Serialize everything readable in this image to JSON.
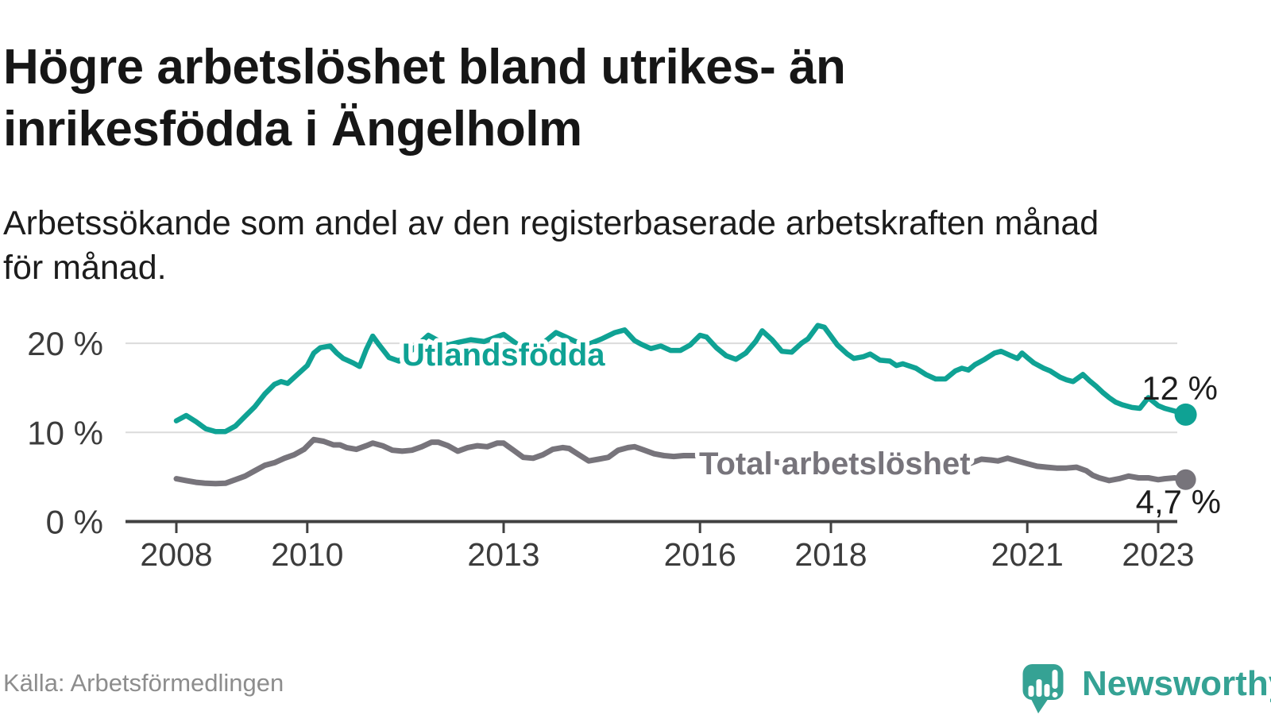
{
  "header": {
    "title_line1": "Högre arbetslöshet bland utrikes- än",
    "title_line2": "inrikesfödda i Ängelholm",
    "subtitle_line1": "Arbetssökande som andel av den registerbaserade arbetskraften månad",
    "subtitle_line2": "för månad."
  },
  "footer": {
    "source": "Källa: Arbetsförmedlingen",
    "brand": "Newsworthy"
  },
  "colors": {
    "teal": "#0fa294",
    "gray_line": "#77747b",
    "grid": "#dbdbdb",
    "axis": "#414141",
    "tick_text": "#3c3c3c",
    "end_label_text": "#1d1d1d",
    "title_text": "#161616",
    "source_text": "#8d8d8d",
    "logo_teal": "#35a294",
    "background": "#ffffff"
  },
  "chart_data": {
    "type": "line",
    "title": "Högre arbetslöshet bland utrikes- än inrikesfödda i Ängelholm",
    "subtitle": "Arbetssökande som andel av den registerbaserade arbetskraften månad för månad.",
    "xlabel": "",
    "ylabel": "",
    "grid": "horizontal",
    "legend": "inline-labels",
    "x_axis": {
      "ticks": [
        2008,
        2010,
        2013,
        2016,
        2018,
        2021,
        2023
      ],
      "min": 2008,
      "max": 2023.8
    },
    "y_axis": {
      "unit": "%",
      "min": 0,
      "max": 23.5,
      "ticks": [
        {
          "value": 0,
          "label": "0 %"
        },
        {
          "value": 10,
          "label": "10 %"
        },
        {
          "value": 20,
          "label": "20 %"
        }
      ]
    },
    "series": [
      {
        "name": "Utlandsfödda",
        "color": "#0fa294",
        "end_label": "12 %",
        "end_value": 12.0,
        "points": [
          [
            2008.0,
            11.3
          ],
          [
            2008.15,
            11.9
          ],
          [
            2008.3,
            11.2
          ],
          [
            2008.45,
            10.4
          ],
          [
            2008.6,
            10.1
          ],
          [
            2008.75,
            10.1
          ],
          [
            2008.9,
            10.7
          ],
          [
            2009.05,
            11.8
          ],
          [
            2009.2,
            12.9
          ],
          [
            2009.35,
            14.3
          ],
          [
            2009.5,
            15.4
          ],
          [
            2009.6,
            15.7
          ],
          [
            2009.7,
            15.5
          ],
          [
            2009.85,
            16.5
          ],
          [
            2010.0,
            17.5
          ],
          [
            2010.1,
            18.9
          ],
          [
            2010.2,
            19.5
          ],
          [
            2010.35,
            19.7
          ],
          [
            2010.45,
            18.9
          ],
          [
            2010.55,
            18.3
          ],
          [
            2010.7,
            17.8
          ],
          [
            2010.8,
            17.4
          ],
          [
            2010.9,
            19.3
          ],
          [
            2011.0,
            20.8
          ],
          [
            2011.1,
            19.8
          ],
          [
            2011.25,
            18.4
          ],
          [
            2011.4,
            18.0
          ],
          [
            2011.55,
            18.9
          ],
          [
            2011.7,
            19.9
          ],
          [
            2011.85,
            20.9
          ],
          [
            2012.0,
            20.3
          ],
          [
            2012.15,
            19.8
          ],
          [
            2012.3,
            20.1
          ],
          [
            2012.5,
            20.4
          ],
          [
            2012.7,
            20.2
          ],
          [
            2012.85,
            20.6
          ],
          [
            2013.0,
            21.0
          ],
          [
            2013.15,
            20.2
          ],
          [
            2013.3,
            19.4
          ],
          [
            2013.45,
            19.3
          ],
          [
            2013.6,
            20.0
          ],
          [
            2013.8,
            21.2
          ],
          [
            2013.95,
            20.7
          ],
          [
            2014.1,
            20.2
          ],
          [
            2014.3,
            19.9
          ],
          [
            2014.5,
            20.5
          ],
          [
            2014.7,
            21.2
          ],
          [
            2014.85,
            21.5
          ],
          [
            2015.0,
            20.3
          ],
          [
            2015.1,
            19.9
          ],
          [
            2015.25,
            19.4
          ],
          [
            2015.4,
            19.7
          ],
          [
            2015.55,
            19.2
          ],
          [
            2015.7,
            19.2
          ],
          [
            2015.85,
            19.8
          ],
          [
            2016.0,
            20.9
          ],
          [
            2016.1,
            20.7
          ],
          [
            2016.25,
            19.5
          ],
          [
            2016.4,
            18.6
          ],
          [
            2016.55,
            18.2
          ],
          [
            2016.7,
            18.9
          ],
          [
            2016.85,
            20.2
          ],
          [
            2016.95,
            21.4
          ],
          [
            2017.1,
            20.4
          ],
          [
            2017.25,
            19.1
          ],
          [
            2017.4,
            19.0
          ],
          [
            2017.55,
            20.0
          ],
          [
            2017.65,
            20.5
          ],
          [
            2017.8,
            22.0
          ],
          [
            2017.9,
            21.8
          ],
          [
            2018.0,
            20.8
          ],
          [
            2018.1,
            19.8
          ],
          [
            2018.25,
            18.8
          ],
          [
            2018.35,
            18.3
          ],
          [
            2018.5,
            18.5
          ],
          [
            2018.6,
            18.8
          ],
          [
            2018.75,
            18.1
          ],
          [
            2018.9,
            18.0
          ],
          [
            2019.0,
            17.5
          ],
          [
            2019.1,
            17.7
          ],
          [
            2019.3,
            17.2
          ],
          [
            2019.45,
            16.5
          ],
          [
            2019.6,
            16.0
          ],
          [
            2019.75,
            16.0
          ],
          [
            2019.9,
            16.9
          ],
          [
            2020.0,
            17.2
          ],
          [
            2020.1,
            17.0
          ],
          [
            2020.2,
            17.6
          ],
          [
            2020.35,
            18.2
          ],
          [
            2020.5,
            18.9
          ],
          [
            2020.6,
            19.1
          ],
          [
            2020.75,
            18.6
          ],
          [
            2020.85,
            18.3
          ],
          [
            2020.92,
            18.9
          ],
          [
            2021.0,
            18.4
          ],
          [
            2021.1,
            17.8
          ],
          [
            2021.25,
            17.2
          ],
          [
            2021.35,
            16.9
          ],
          [
            2021.5,
            16.2
          ],
          [
            2021.6,
            15.9
          ],
          [
            2021.7,
            15.7
          ],
          [
            2021.85,
            16.5
          ],
          [
            2021.95,
            15.8
          ],
          [
            2022.05,
            15.2
          ],
          [
            2022.15,
            14.5
          ],
          [
            2022.25,
            13.9
          ],
          [
            2022.35,
            13.4
          ],
          [
            2022.45,
            13.1
          ],
          [
            2022.6,
            12.8
          ],
          [
            2022.72,
            12.7
          ],
          [
            2022.85,
            13.9
          ],
          [
            2023.0,
            13.0
          ],
          [
            2023.1,
            12.7
          ],
          [
            2023.25,
            12.4
          ],
          [
            2023.42,
            12.0
          ]
        ]
      },
      {
        "name": "Total arbetslöshet",
        "color": "#77747b",
        "end_label": "4,7 %",
        "end_value": 4.7,
        "points": [
          [
            2008.0,
            4.8
          ],
          [
            2008.15,
            4.6
          ],
          [
            2008.3,
            4.4
          ],
          [
            2008.45,
            4.3
          ],
          [
            2008.6,
            4.25
          ],
          [
            2008.75,
            4.3
          ],
          [
            2008.9,
            4.7
          ],
          [
            2009.05,
            5.1
          ],
          [
            2009.2,
            5.7
          ],
          [
            2009.35,
            6.3
          ],
          [
            2009.5,
            6.6
          ],
          [
            2009.65,
            7.1
          ],
          [
            2009.8,
            7.5
          ],
          [
            2009.95,
            8.1
          ],
          [
            2010.1,
            9.2
          ],
          [
            2010.25,
            9.0
          ],
          [
            2010.4,
            8.6
          ],
          [
            2010.5,
            8.6
          ],
          [
            2010.6,
            8.3
          ],
          [
            2010.75,
            8.1
          ],
          [
            2010.9,
            8.5
          ],
          [
            2011.0,
            8.8
          ],
          [
            2011.15,
            8.5
          ],
          [
            2011.3,
            8.0
          ],
          [
            2011.45,
            7.9
          ],
          [
            2011.6,
            8.0
          ],
          [
            2011.75,
            8.4
          ],
          [
            2011.9,
            8.9
          ],
          [
            2012.0,
            8.9
          ],
          [
            2012.15,
            8.5
          ],
          [
            2012.3,
            7.9
          ],
          [
            2012.45,
            8.3
          ],
          [
            2012.6,
            8.5
          ],
          [
            2012.75,
            8.4
          ],
          [
            2012.9,
            8.8
          ],
          [
            2013.0,
            8.8
          ],
          [
            2013.15,
            8.0
          ],
          [
            2013.3,
            7.2
          ],
          [
            2013.45,
            7.1
          ],
          [
            2013.6,
            7.5
          ],
          [
            2013.75,
            8.1
          ],
          [
            2013.9,
            8.3
          ],
          [
            2014.0,
            8.2
          ],
          [
            2014.15,
            7.5
          ],
          [
            2014.3,
            6.8
          ],
          [
            2014.45,
            7.0
          ],
          [
            2014.6,
            7.2
          ],
          [
            2014.75,
            8.0
          ],
          [
            2014.9,
            8.3
          ],
          [
            2015.0,
            8.4
          ],
          [
            2015.15,
            8.0
          ],
          [
            2015.3,
            7.6
          ],
          [
            2015.45,
            7.4
          ],
          [
            2015.6,
            7.3
          ],
          [
            2015.75,
            7.4
          ],
          [
            2015.9,
            7.4
          ],
          [
            2016.0,
            7.4
          ],
          [
            2016.2,
            7.2
          ],
          [
            2016.4,
            7.1
          ],
          [
            2016.6,
            7.0
          ],
          [
            2016.8,
            6.9
          ],
          [
            2017.0,
            6.8
          ],
          [
            2017.25,
            6.6
          ],
          [
            2017.5,
            6.5
          ],
          [
            2017.75,
            6.4
          ],
          [
            2018.0,
            6.4
          ],
          [
            2018.25,
            6.2
          ],
          [
            2018.5,
            6.1
          ],
          [
            2018.75,
            6.0
          ],
          [
            2019.0,
            6.0
          ],
          [
            2019.25,
            5.9
          ],
          [
            2019.5,
            5.8
          ],
          [
            2019.75,
            5.9
          ],
          [
            2020.0,
            6.1
          ],
          [
            2020.15,
            6.6
          ],
          [
            2020.3,
            7.0
          ],
          [
            2020.45,
            6.9
          ],
          [
            2020.55,
            6.8
          ],
          [
            2020.7,
            7.1
          ],
          [
            2020.85,
            6.8
          ],
          [
            2021.0,
            6.5
          ],
          [
            2021.15,
            6.2
          ],
          [
            2021.3,
            6.1
          ],
          [
            2021.45,
            6.0
          ],
          [
            2021.6,
            6.0
          ],
          [
            2021.75,
            6.1
          ],
          [
            2021.9,
            5.7
          ],
          [
            2022.0,
            5.2
          ],
          [
            2022.1,
            4.9
          ],
          [
            2022.25,
            4.6
          ],
          [
            2022.4,
            4.8
          ],
          [
            2022.55,
            5.1
          ],
          [
            2022.7,
            4.9
          ],
          [
            2022.85,
            4.9
          ],
          [
            2023.0,
            4.7
          ],
          [
            2023.1,
            4.8
          ],
          [
            2023.25,
            4.9
          ],
          [
            2023.42,
            4.7
          ]
        ]
      }
    ]
  }
}
